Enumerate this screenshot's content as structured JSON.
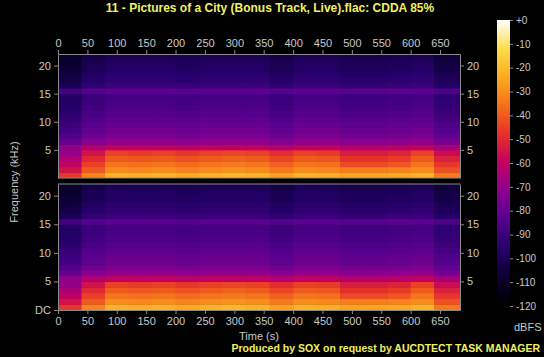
{
  "chart_data": [
    {
      "type": "heatmap",
      "title": "11 - Pictures of a City (Bonus Track, Live).flac: CDDA 85%",
      "y_label": "Frequency (kHz)",
      "xlim": [
        0,
        684
      ],
      "ylim": [
        0,
        22.05
      ],
      "xticks": [
        0,
        50,
        100,
        150,
        200,
        250,
        300,
        350,
        400,
        450,
        500,
        550,
        600,
        650
      ],
      "yticks": [
        5,
        10,
        15,
        20
      ],
      "time_bins": [
        0,
        40,
        80,
        120,
        160,
        200,
        240,
        280,
        320,
        360,
        400,
        440,
        480,
        520,
        560,
        600,
        640,
        684
      ],
      "freq_bins": [
        0,
        1,
        2,
        3,
        4,
        5,
        6,
        7,
        8,
        9,
        10,
        11,
        12,
        13,
        14,
        15,
        16,
        17,
        18,
        19,
        20,
        21,
        22.05
      ],
      "cells": [
        [
          -47,
          -32,
          -22,
          -23,
          -22,
          -24,
          -22,
          -21,
          -22,
          -26,
          -22,
          -23,
          -25,
          -25,
          -24,
          -22,
          -34
        ],
        [
          -55,
          -40,
          -30,
          -31,
          -30,
          -32,
          -30,
          -29,
          -30,
          -34,
          -30,
          -31,
          -33,
          -33,
          -32,
          -30,
          -42
        ],
        [
          -60,
          -45,
          -35,
          -36,
          -35,
          -37,
          -35,
          -34,
          -35,
          -39,
          -35,
          -36,
          -43,
          -43,
          -41,
          -35,
          -47
        ],
        [
          -65,
          -50,
          -40,
          -41,
          -40,
          -42,
          -40,
          -39,
          -40,
          -44,
          -40,
          -41,
          -48,
          -48,
          -46,
          -40,
          -52
        ],
        [
          -70,
          -55,
          -45,
          -46,
          -45,
          -47,
          -45,
          -44,
          -45,
          -49,
          -45,
          -46,
          -53,
          -53,
          -51,
          -45,
          -57
        ],
        [
          -70,
          -63,
          -60,
          -60,
          -60,
          -61,
          -60,
          -60,
          -60,
          -63,
          -60,
          -60,
          -62,
          -62,
          -61,
          -60,
          -66
        ],
        [
          -80,
          -73,
          -70,
          -70,
          -70,
          -71,
          -70,
          -70,
          -70,
          -73,
          -70,
          -70,
          -72,
          -72,
          -71,
          -70,
          -76
        ],
        [
          -85,
          -78,
          -75,
          -75,
          -75,
          -76,
          -75,
          -75,
          -75,
          -78,
          -75,
          -75,
          -77,
          -77,
          -76,
          -75,
          -81
        ],
        [
          -88,
          -81,
          -78,
          -78,
          -78,
          -79,
          -78,
          -78,
          -78,
          -81,
          -78,
          -78,
          -80,
          -80,
          -79,
          -78,
          -84
        ],
        [
          -90,
          -83,
          -80,
          -80,
          -80,
          -81,
          -80,
          -80,
          -80,
          -83,
          -80,
          -80,
          -82,
          -82,
          -81,
          -80,
          -86
        ],
        [
          -92,
          -85,
          -82,
          -82,
          -82,
          -83,
          -82,
          -82,
          -82,
          -85,
          -82,
          -82,
          -84,
          -84,
          -83,
          -82,
          -88
        ],
        [
          -94,
          -87,
          -84,
          -84,
          -84,
          -85,
          -84,
          -84,
          -84,
          -87,
          -84,
          -84,
          -86,
          -86,
          -85,
          -84,
          -90
        ],
        [
          -96,
          -89,
          -86,
          -86,
          -86,
          -87,
          -86,
          -86,
          -86,
          -89,
          -86,
          -86,
          -88,
          -88,
          -87,
          -86,
          -92
        ],
        [
          -97,
          -90,
          -87,
          -87,
          -87,
          -88,
          -87,
          -87,
          -87,
          -90,
          -87,
          -87,
          -89,
          -89,
          -88,
          -87,
          -93
        ],
        [
          -98,
          -91,
          -88,
          -88,
          -88,
          -89,
          -88,
          -88,
          -88,
          -91,
          -88,
          -88,
          -90,
          -90,
          -89,
          -88,
          -94
        ],
        [
          -88,
          -84,
          -82,
          -82,
          -82,
          -83,
          -82,
          -82,
          -82,
          -84,
          -82,
          -82,
          -83,
          -83,
          -82,
          -82,
          -86
        ],
        [
          -100,
          -93,
          -90,
          -90,
          -90,
          -91,
          -90,
          -90,
          -90,
          -93,
          -90,
          -90,
          -92,
          -92,
          -91,
          -90,
          -96
        ],
        [
          -103,
          -96,
          -93,
          -93,
          -93,
          -94,
          -93,
          -93,
          -93,
          -96,
          -93,
          -93,
          -95,
          -95,
          -94,
          -93,
          -99
        ],
        [
          -105,
          -98,
          -95,
          -95,
          -95,
          -96,
          -95,
          -95,
          -95,
          -98,
          -95,
          -95,
          -97,
          -97,
          -96,
          -95,
          -101
        ],
        [
          -107,
          -100,
          -97,
          -97,
          -97,
          -98,
          -97,
          -97,
          -97,
          -100,
          -97,
          -97,
          -99,
          -99,
          -98,
          -97,
          -103
        ],
        [
          -108,
          -101,
          -98,
          -98,
          -98,
          -99,
          -98,
          -98,
          -98,
          -101,
          -98,
          -98,
          -100,
          -100,
          -99,
          -98,
          -104
        ],
        [
          -110,
          -103,
          -100,
          -100,
          -100,
          -101,
          -100,
          -100,
          -100,
          -103,
          -100,
          -100,
          -102,
          -102,
          -101,
          -100,
          -106
        ]
      ],
      "color_range": [
        -120,
        0
      ],
      "color_ticks": [
        {
          "value": 0,
          "label": "+0"
        },
        -10,
        -20,
        -30,
        -40,
        -50,
        -60,
        -70,
        -80,
        -90,
        -100,
        -110,
        -120
      ],
      "color_label": "dBFS",
      "annotations": [
        "Produced by SOX on request by AUCDTECT TASK MANAGER"
      ]
    },
    {
      "type": "heatmap",
      "x_label": "Time (s)",
      "xlim": [
        0,
        684
      ],
      "ylim": [
        0,
        22.05
      ],
      "xticks": [
        0,
        50,
        100,
        150,
        200,
        250,
        300,
        350,
        400,
        450,
        500,
        550,
        600,
        650
      ],
      "yticks": [
        {
          "value": 0,
          "label": "DC"
        },
        5,
        10,
        15,
        20
      ],
      "time_bins": [
        0,
        40,
        80,
        120,
        160,
        200,
        240,
        280,
        320,
        360,
        400,
        440,
        480,
        520,
        560,
        600,
        640,
        684
      ],
      "freq_bins": [
        0,
        1,
        2,
        3,
        4,
        5,
        6,
        7,
        8,
        9,
        10,
        11,
        12,
        13,
        14,
        15,
        16,
        17,
        18,
        19,
        20,
        21,
        22.05
      ],
      "cells": [
        [
          -47,
          -32,
          -22,
          -23,
          -22,
          -24,
          -22,
          -21,
          -22,
          -26,
          -22,
          -23,
          -25,
          -25,
          -24,
          -22,
          -34
        ],
        [
          -55,
          -40,
          -30,
          -31,
          -30,
          -32,
          -30,
          -29,
          -30,
          -34,
          -30,
          -31,
          -33,
          -33,
          -32,
          -30,
          -42
        ],
        [
          -60,
          -45,
          -35,
          -36,
          -35,
          -37,
          -35,
          -34,
          -35,
          -39,
          -35,
          -36,
          -43,
          -43,
          -41,
          -35,
          -47
        ],
        [
          -65,
          -50,
          -40,
          -41,
          -40,
          -42,
          -40,
          -39,
          -40,
          -44,
          -40,
          -41,
          -48,
          -48,
          -46,
          -40,
          -52
        ],
        [
          -70,
          -55,
          -45,
          -46,
          -45,
          -47,
          -45,
          -44,
          -45,
          -49,
          -45,
          -46,
          -53,
          -53,
          -51,
          -45,
          -57
        ],
        [
          -70,
          -63,
          -60,
          -60,
          -60,
          -61,
          -60,
          -60,
          -60,
          -63,
          -60,
          -60,
          -62,
          -62,
          -61,
          -60,
          -66
        ],
        [
          -80,
          -73,
          -70,
          -70,
          -70,
          -71,
          -70,
          -70,
          -70,
          -73,
          -70,
          -70,
          -72,
          -72,
          -71,
          -70,
          -76
        ],
        [
          -85,
          -78,
          -75,
          -75,
          -75,
          -76,
          -75,
          -75,
          -75,
          -78,
          -75,
          -75,
          -77,
          -77,
          -76,
          -75,
          -81
        ],
        [
          -88,
          -81,
          -78,
          -78,
          -78,
          -79,
          -78,
          -78,
          -78,
          -81,
          -78,
          -78,
          -80,
          -80,
          -79,
          -78,
          -84
        ],
        [
          -90,
          -83,
          -80,
          -80,
          -80,
          -81,
          -80,
          -80,
          -80,
          -83,
          -80,
          -80,
          -82,
          -82,
          -81,
          -80,
          -86
        ],
        [
          -92,
          -85,
          -82,
          -82,
          -82,
          -83,
          -82,
          -82,
          -82,
          -85,
          -82,
          -82,
          -84,
          -84,
          -83,
          -82,
          -88
        ],
        [
          -94,
          -87,
          -84,
          -84,
          -84,
          -85,
          -84,
          -84,
          -84,
          -87,
          -84,
          -84,
          -86,
          -86,
          -85,
          -84,
          -90
        ],
        [
          -96,
          -89,
          -86,
          -86,
          -86,
          -87,
          -86,
          -86,
          -86,
          -89,
          -86,
          -86,
          -88,
          -88,
          -87,
          -86,
          -92
        ],
        [
          -97,
          -90,
          -87,
          -87,
          -87,
          -88,
          -87,
          -87,
          -87,
          -90,
          -87,
          -87,
          -89,
          -89,
          -88,
          -87,
          -93
        ],
        [
          -98,
          -91,
          -88,
          -88,
          -88,
          -89,
          -88,
          -88,
          -88,
          -91,
          -88,
          -88,
          -90,
          -90,
          -89,
          -88,
          -94
        ],
        [
          -88,
          -84,
          -82,
          -82,
          -82,
          -83,
          -82,
          -82,
          -82,
          -84,
          -82,
          -82,
          -83,
          -83,
          -82,
          -82,
          -86
        ],
        [
          -100,
          -93,
          -90,
          -90,
          -90,
          -91,
          -90,
          -90,
          -90,
          -93,
          -90,
          -90,
          -92,
          -92,
          -91,
          -90,
          -96
        ],
        [
          -103,
          -96,
          -93,
          -93,
          -93,
          -94,
          -93,
          -93,
          -93,
          -96,
          -93,
          -93,
          -95,
          -95,
          -94,
          -93,
          -99
        ],
        [
          -105,
          -98,
          -95,
          -95,
          -95,
          -96,
          -95,
          -95,
          -95,
          -98,
          -95,
          -95,
          -97,
          -97,
          -96,
          -95,
          -101
        ],
        [
          -107,
          -100,
          -97,
          -97,
          -97,
          -98,
          -97,
          -97,
          -97,
          -100,
          -97,
          -97,
          -99,
          -99,
          -98,
          -97,
          -103
        ],
        [
          -108,
          -101,
          -98,
          -98,
          -98,
          -99,
          -98,
          -98,
          -98,
          -101,
          -98,
          -98,
          -100,
          -100,
          -99,
          -98,
          -104
        ],
        [
          -110,
          -103,
          -100,
          -100,
          -100,
          -101,
          -100,
          -100,
          -100,
          -103,
          -100,
          -100,
          -102,
          -102,
          -101,
          -100,
          -106
        ]
      ]
    }
  ]
}
